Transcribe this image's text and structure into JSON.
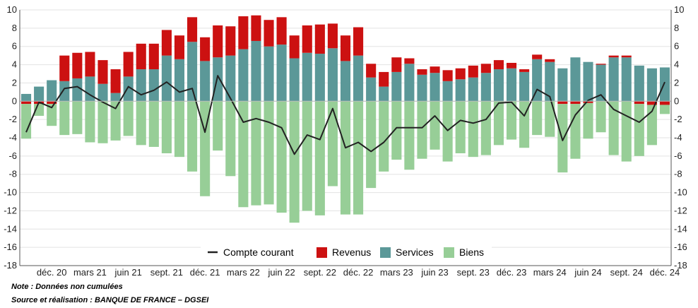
{
  "chart_data": {
    "type": "bar",
    "stacked": true,
    "ylim": [
      -18,
      10
    ],
    "yticks": [
      -18,
      -16,
      -14,
      -12,
      -10,
      -8,
      -6,
      -4,
      -2,
      0,
      2,
      4,
      6,
      8,
      10
    ],
    "secondary_y_axis": true,
    "grid": "horizontal",
    "legend_position": "bottom-center",
    "x_tick_labels": [
      {
        "index": 2,
        "label": "déc. 20"
      },
      {
        "index": 5,
        "label": "mars 21"
      },
      {
        "index": 8,
        "label": "juin 21"
      },
      {
        "index": 11,
        "label": "sept. 21"
      },
      {
        "index": 14,
        "label": "déc. 21"
      },
      {
        "index": 17,
        "label": "mars 22"
      },
      {
        "index": 20,
        "label": "juin 22"
      },
      {
        "index": 23,
        "label": "sept. 22"
      },
      {
        "index": 26,
        "label": "déc. 22"
      },
      {
        "index": 29,
        "label": "mars 23"
      },
      {
        "index": 32,
        "label": "juin 23"
      },
      {
        "index": 35,
        "label": "sept. 23"
      },
      {
        "index": 38,
        "label": "déc. 23"
      },
      {
        "index": 41,
        "label": "mars 24"
      },
      {
        "index": 44,
        "label": "juin 24"
      },
      {
        "index": 47,
        "label": "sept. 24"
      },
      {
        "index": 50,
        "label": "déc. 24"
      }
    ],
    "series": [
      {
        "name": "Services",
        "color": "#5b9898",
        "type": "bar",
        "values": [
          0.8,
          1.6,
          2.3,
          2.2,
          2.5,
          2.7,
          1.9,
          0.9,
          2.7,
          3.5,
          3.5,
          5.0,
          4.6,
          6.5,
          4.4,
          4.8,
          5.0,
          5.7,
          6.6,
          6.0,
          6.2,
          4.7,
          5.3,
          5.2,
          5.8,
          4.4,
          5.0,
          2.6,
          1.6,
          3.2,
          4.1,
          2.9,
          3.1,
          2.2,
          2.4,
          2.6,
          3.1,
          3.5,
          3.6,
          3.2,
          4.6,
          4.3,
          3.6,
          4.8,
          4.3,
          4.0,
          4.8,
          4.8,
          3.9,
          3.6,
          3.7
        ]
      },
      {
        "name": "Revenus",
        "color": "#cc1111",
        "type": "bar",
        "values": [
          -0.3,
          -0.3,
          -0.3,
          2.8,
          2.8,
          2.7,
          2.6,
          2.6,
          2.7,
          2.8,
          2.8,
          2.8,
          2.6,
          2.7,
          2.6,
          3.5,
          3.2,
          3.6,
          2.8,
          2.9,
          3.0,
          2.5,
          3.0,
          3.2,
          2.7,
          2.8,
          3.1,
          1.5,
          1.6,
          1.6,
          0.6,
          0.6,
          0.7,
          1.2,
          1.2,
          1.3,
          1.0,
          1.0,
          0.6,
          0.3,
          0.5,
          0.3,
          -0.3,
          -0.3,
          -0.2,
          0.1,
          0.2,
          0.2,
          -0.3,
          -0.4,
          -0.4
        ]
      },
      {
        "name": "Biens",
        "color": "#97ce97",
        "type": "bar",
        "values": [
          -3.8,
          -1.3,
          -2.4,
          -3.7,
          -3.6,
          -4.5,
          -4.6,
          -4.3,
          -3.8,
          -4.8,
          -5.0,
          -5.7,
          -6.1,
          -7.7,
          -10.4,
          -5.4,
          -8.2,
          -11.6,
          -11.4,
          -11.3,
          -12.2,
          -13.3,
          -12.0,
          -12.5,
          -9.3,
          -12.4,
          -12.4,
          -9.5,
          -7.7,
          -6.4,
          -7.5,
          -6.3,
          -5.3,
          -6.6,
          -5.7,
          -6.1,
          -5.9,
          -4.8,
          -4.2,
          -5.1,
          -3.7,
          -3.9,
          -7.5,
          -6.0,
          -3.9,
          -3.4,
          -5.9,
          -6.6,
          -5.7,
          -4.4,
          -1.0
        ]
      },
      {
        "name": "Compte courant",
        "color": "#222222",
        "type": "line",
        "values": [
          -3.4,
          -0.1,
          -0.7,
          1.4,
          1.6,
          0.7,
          -0.1,
          -0.8,
          1.6,
          0.7,
          1.2,
          2.1,
          1.0,
          1.4,
          -3.4,
          2.8,
          0.3,
          -2.3,
          -1.9,
          -2.3,
          -2.9,
          -5.8,
          -3.7,
          -4.2,
          -0.8,
          -5.1,
          -4.5,
          -5.5,
          -4.5,
          -2.9,
          -2.9,
          -2.9,
          -1.6,
          -3.2,
          -2.1,
          -2.4,
          -2.0,
          -0.2,
          -0.1,
          -1.6,
          1.3,
          0.5,
          -4.3,
          -1.5,
          0.1,
          0.7,
          -0.9,
          -1.6,
          -2.3,
          -1.1,
          2.1
        ]
      }
    ]
  },
  "legend": [
    {
      "name": "Compte courant",
      "swatch": "line",
      "color": "#222222"
    },
    {
      "name": "Revenus",
      "swatch": "box",
      "color": "#cc1111"
    },
    {
      "name": "Services",
      "swatch": "box",
      "color": "#5b9898"
    },
    {
      "name": "Biens",
      "swatch": "box",
      "color": "#97ce97"
    }
  ],
  "notes": {
    "note": "Note : Données non cumulées",
    "source": "Source  et réalisation  : BANQUE DE FRANCE – DGSEI"
  }
}
